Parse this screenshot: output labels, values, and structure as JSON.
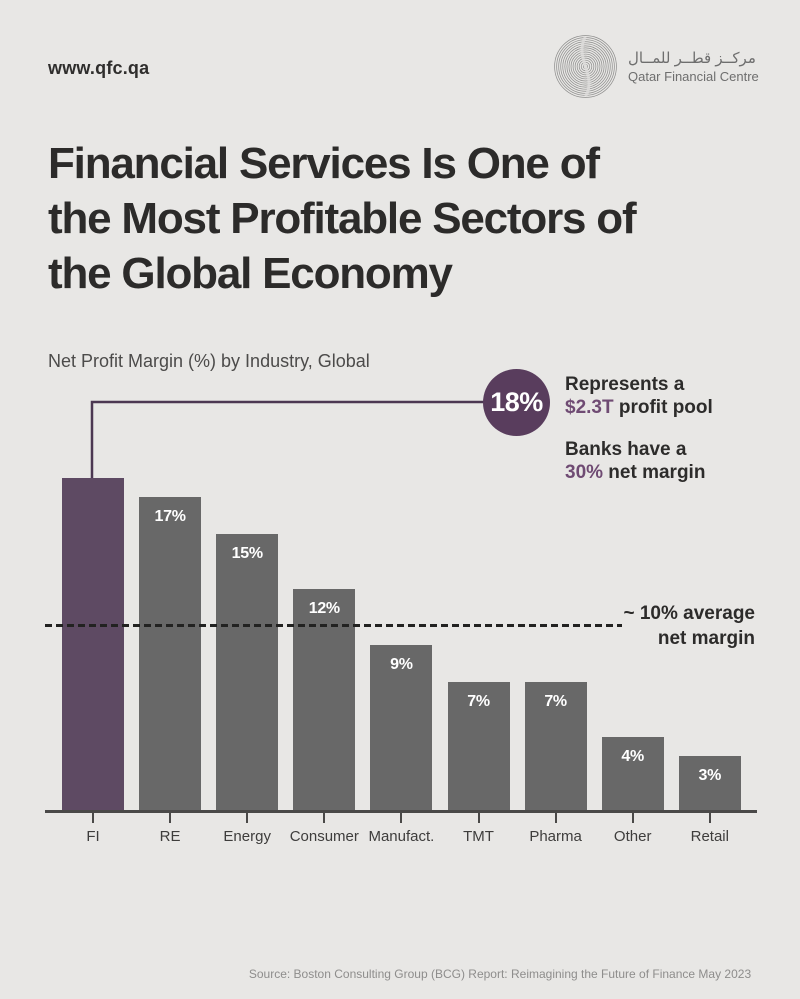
{
  "page": {
    "background": "#e8e7e5"
  },
  "header": {
    "website": "www.qfc.qa",
    "logo": {
      "arabic": "مركــز قطــر للمــال",
      "english": "Qatar Financial Centre",
      "icon": "concentric-rings-icon",
      "color": "#6e6e6e"
    }
  },
  "title": "Financial Services Is One of the Most Profitable Sectors of the Global Economy",
  "title_lines": [
    "Financial Services Is One of",
    "the Most Profitable Sectors of",
    "the Global Economy"
  ],
  "subtitle": "Net Profit Margin (%) by Industry, Global",
  "callout": {
    "bubble_value": "18%",
    "line1": "Represents a",
    "line2_highlight": "$2.3T",
    "line2_rest": " profit pool",
    "line3": "Banks have a",
    "line4_highlight": "30%",
    "line4_rest": " net margin"
  },
  "average_line": {
    "value": 10,
    "label_line1": "~ 10% average",
    "label_line2": "net margin"
  },
  "chart_data": {
    "type": "bar",
    "title": "Net Profit Margin (%) by Industry, Global",
    "categories": [
      "FI",
      "RE",
      "Energy",
      "Consumer",
      "Manufact.",
      "TMT",
      "Pharma",
      "Other",
      "Retail"
    ],
    "values": [
      18,
      17,
      15,
      12,
      9,
      7,
      7,
      4,
      3
    ],
    "bar_labels": [
      "",
      "17%",
      "15%",
      "12%",
      "9%",
      "7%",
      "7%",
      "4%",
      "3%"
    ],
    "highlight_index": 0,
    "highlight_callout": "18% — Represents a $2.3T profit pool; Banks have a 30% net margin",
    "reference_line": {
      "value": 10,
      "label": "~ 10% average net margin",
      "style": "dashed"
    },
    "xlabel": "",
    "ylabel": "Net Profit Margin (%)",
    "ylim": [
      0,
      20
    ],
    "grid": false,
    "legend": false,
    "colors": {
      "bar": "#686868",
      "highlight": "#5e4a63",
      "bubble": "#593d5d",
      "connector": "#4c3852",
      "accent_text": "#6f4b73",
      "value_label": "#ffffff"
    }
  },
  "footer": {
    "source": "Source: Boston Consulting Group (BCG) Report: Reimagining the Future of Finance May 2023"
  }
}
